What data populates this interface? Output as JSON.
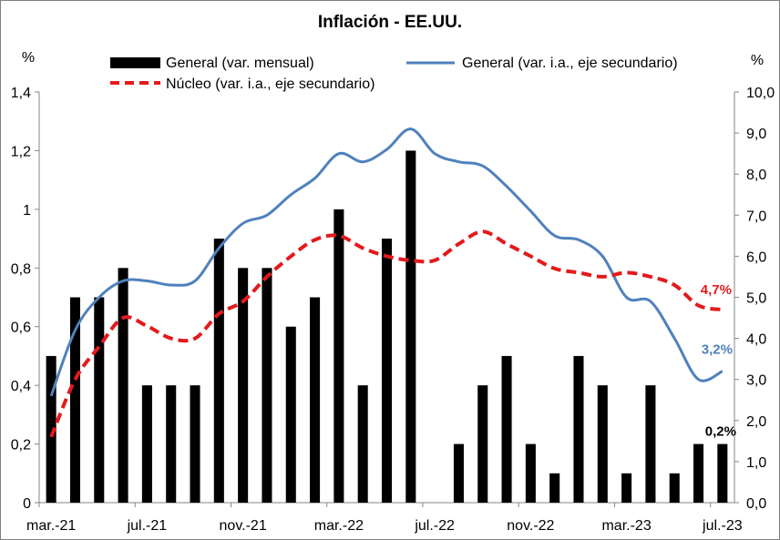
{
  "chart_data": {
    "type": "bar",
    "title": "Inflación - EE.UU.",
    "left_unit": "%",
    "right_unit": "%",
    "x_tick_labels": [
      "mar.-21",
      "jul.-21",
      "nov.-21",
      "mar.-22",
      "jul.-22",
      "nov.-22",
      "mar.-23",
      "jul.-23"
    ],
    "categories": [
      "mar.-21",
      "abr.-21",
      "may.-21",
      "jun.-21",
      "jul.-21",
      "ago.-21",
      "sep.-21",
      "oct.-21",
      "nov.-21",
      "dic.-21",
      "ene.-22",
      "feb.-22",
      "mar.-22",
      "abr.-22",
      "may.-22",
      "jun.-22",
      "jul.-22",
      "ago.-22",
      "sep.-22",
      "oct.-22",
      "nov.-22",
      "dic.-22",
      "ene.-23",
      "feb.-23",
      "mar.-23",
      "abr.-23",
      "may.-23",
      "jun.-23",
      "jul.-23"
    ],
    "y_left_ticks": [
      "0",
      "0,2",
      "0,4",
      "0,6",
      "0,8",
      "1",
      "1,2",
      "1,4"
    ],
    "y_right_ticks": [
      "0,0",
      "1,0",
      "2,0",
      "3,0",
      "4,0",
      "5,0",
      "6,0",
      "7,0",
      "8,0",
      "9,0",
      "10,0"
    ],
    "ylim_left": [
      0,
      1.4
    ],
    "ylim_right": [
      0,
      10
    ],
    "grid": false,
    "legend_position": "top",
    "series": [
      {
        "name": "General (var. mensual)",
        "kind": "bar",
        "axis": "left",
        "color": "#000000",
        "values": [
          0.5,
          0.7,
          0.7,
          0.8,
          0.4,
          0.4,
          0.4,
          0.9,
          0.8,
          0.8,
          0.6,
          0.7,
          1.0,
          0.4,
          0.9,
          1.2,
          0.0,
          0.2,
          0.4,
          0.5,
          0.2,
          0.1,
          0.5,
          0.4,
          0.1,
          0.4,
          0.1,
          0.2,
          0.2
        ]
      },
      {
        "name": "General (var. i.a., eje secundario)",
        "kind": "line",
        "axis": "right",
        "color": "#4f81bd",
        "values": [
          2.6,
          4.2,
          5.0,
          5.4,
          5.4,
          5.3,
          5.4,
          6.2,
          6.8,
          7.0,
          7.5,
          7.9,
          8.5,
          8.3,
          8.6,
          9.1,
          8.5,
          8.3,
          8.2,
          7.7,
          7.1,
          6.5,
          6.4,
          6.0,
          5.0,
          4.9,
          4.0,
          3.0,
          3.2
        ]
      },
      {
        "name": "Núcleo (var. i.a., eje secundario)",
        "kind": "line",
        "axis": "right",
        "color": "#e31a1c",
        "dashed": true,
        "values": [
          1.6,
          3.0,
          3.8,
          4.5,
          4.3,
          4.0,
          4.0,
          4.6,
          4.9,
          5.5,
          6.0,
          6.4,
          6.5,
          6.2,
          6.0,
          5.9,
          5.9,
          6.3,
          6.6,
          6.3,
          6.0,
          5.7,
          5.6,
          5.5,
          5.6,
          5.5,
          5.3,
          4.8,
          4.7
        ]
      }
    ],
    "data_labels": [
      {
        "series": 0,
        "text": "0,2%",
        "color": "#000000"
      },
      {
        "series": 1,
        "text": "3,2%",
        "color": "#4f81bd"
      },
      {
        "series": 2,
        "text": "4,7%",
        "color": "#e31a1c"
      }
    ]
  }
}
